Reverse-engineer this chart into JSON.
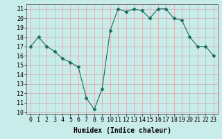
{
  "x": [
    0,
    1,
    2,
    3,
    4,
    5,
    6,
    7,
    8,
    9,
    10,
    11,
    12,
    13,
    14,
    15,
    16,
    17,
    18,
    19,
    20,
    21,
    22,
    23
  ],
  "y": [
    17,
    18,
    17,
    16.5,
    15.7,
    15.3,
    14.8,
    11.5,
    10.3,
    12.5,
    18.7,
    21,
    20.7,
    21,
    20.8,
    20,
    21,
    21,
    20,
    19.8,
    18,
    17,
    17,
    16
  ],
  "xlim": [
    -0.5,
    23.5
  ],
  "ylim": [
    9.8,
    21.5
  ],
  "yticks": [
    10,
    11,
    12,
    13,
    14,
    15,
    16,
    17,
    18,
    19,
    20,
    21
  ],
  "xticks": [
    0,
    1,
    2,
    3,
    4,
    5,
    6,
    7,
    8,
    9,
    10,
    11,
    12,
    13,
    14,
    15,
    16,
    17,
    18,
    19,
    20,
    21,
    22,
    23
  ],
  "xlabel": "Humidex (Indice chaleur)",
  "line_color": "#1a6b5a",
  "marker": "D",
  "marker_size": 2.5,
  "background_color": "#c8ecea",
  "grid_color": "#d4a8a8",
  "label_fontsize": 7,
  "tick_fontsize": 6
}
